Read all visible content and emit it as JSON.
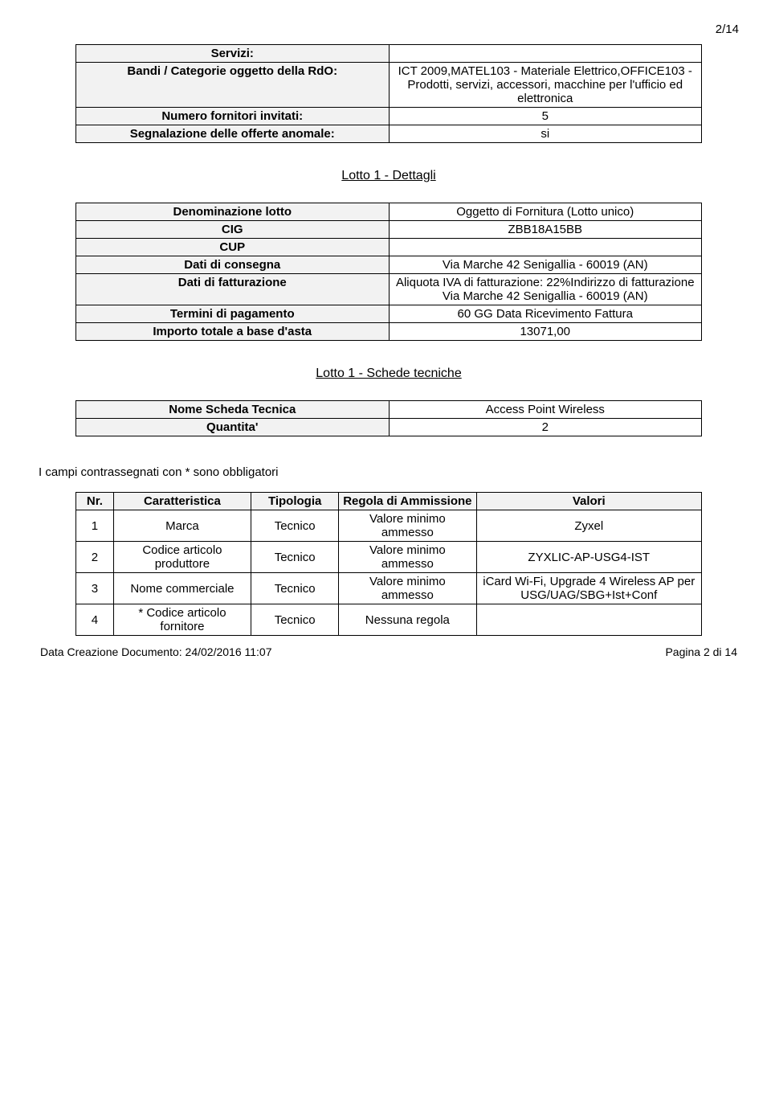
{
  "page_indicator": "2/14",
  "info_table": {
    "rows": [
      {
        "label": "Servizi:",
        "value": ""
      },
      {
        "label": "Bandi / Categorie oggetto della RdO:",
        "value": "ICT 2009,MATEL103 - Materiale Elettrico,OFFICE103 - Prodotti, servizi, accessori, macchine per l'ufficio ed elettronica"
      },
      {
        "label": "Numero fornitori invitati:",
        "value": "5"
      },
      {
        "label": "Segnalazione delle offerte anomale:",
        "value": "si"
      }
    ]
  },
  "lotto_heading": "Lotto 1 - Dettagli",
  "lotto_table": {
    "rows": [
      {
        "label": "Denominazione lotto",
        "value": "Oggetto di Fornitura (Lotto unico)"
      },
      {
        "label": "CIG",
        "value": "ZBB18A15BB"
      },
      {
        "label": "CUP",
        "value": ""
      },
      {
        "label": "Dati di consegna",
        "value": "Via Marche 42 Senigallia - 60019 (AN)"
      },
      {
        "label": "Dati di fatturazione",
        "value": "Aliquota IVA di fatturazione: 22%Indirizzo di fatturazione Via Marche 42 Senigallia - 60019 (AN)"
      },
      {
        "label": "Termini di pagamento",
        "value": "60 GG Data Ricevimento Fattura"
      },
      {
        "label": "Importo totale a base d'asta",
        "value": "13071,00"
      }
    ]
  },
  "schede_heading": "Lotto 1 - Schede tecniche",
  "schede_table": {
    "rows": [
      {
        "label": "Nome Scheda Tecnica",
        "value": "Access Point Wireless"
      },
      {
        "label": "Quantita'",
        "value": "2"
      }
    ]
  },
  "asterisk_note": "I campi contrassegnati con * sono obbligatori",
  "carat_table": {
    "headers": [
      "Nr.",
      "Caratteristica",
      "Tipologia",
      "Regola di Ammissione",
      "Valori"
    ],
    "rows": [
      {
        "nr": "1",
        "carat": "Marca",
        "tip": "Tecnico",
        "regola": "Valore minimo ammesso",
        "valori": "Zyxel"
      },
      {
        "nr": "2",
        "carat": "Codice articolo produttore",
        "tip": "Tecnico",
        "regola": "Valore minimo ammesso",
        "valori": "ZYXLIC-AP-USG4-IST"
      },
      {
        "nr": "3",
        "carat": "Nome commerciale",
        "tip": "Tecnico",
        "regola": "Valore minimo ammesso",
        "valori": "iCard Wi-Fi, Upgrade 4 Wireless AP per USG/UAG/SBG+Ist+Conf"
      },
      {
        "nr": "4",
        "carat": "* Codice articolo fornitore",
        "tip": "Tecnico",
        "regola": "Nessuna regola",
        "valori": ""
      }
    ],
    "col_widths": [
      "6%",
      "22%",
      "14%",
      "22%",
      "36%"
    ]
  },
  "footer": {
    "left": "Data Creazione Documento: 24/02/2016 11:07",
    "right": "Pagina 2 di 14"
  }
}
